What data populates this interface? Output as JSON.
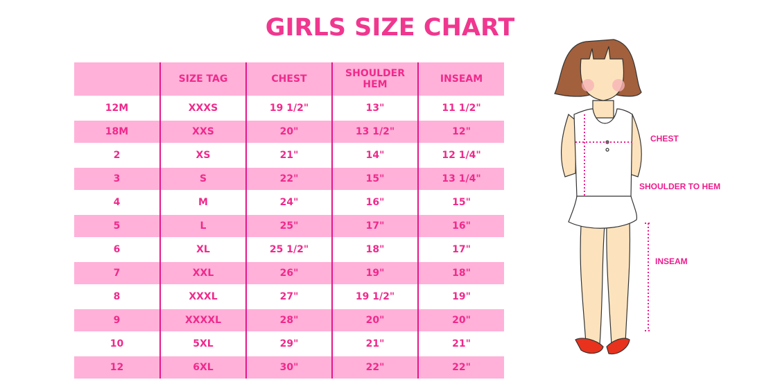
{
  "title": "GIRLS SIZE CHART",
  "table": {
    "headers": [
      "",
      "SIZE TAG",
      "CHEST",
      "SHOULDER HEM",
      "INSEAM"
    ],
    "rows": [
      [
        "12M",
        "XXXS",
        "19 1/2\"",
        "13\"",
        "11 1/2\""
      ],
      [
        "18M",
        "XXS",
        "20\"",
        "13 1/2\"",
        "12\""
      ],
      [
        "2",
        "XS",
        "21\"",
        "14\"",
        "12 1/4\""
      ],
      [
        "3",
        "S",
        "22\"",
        "15\"",
        "13 1/4\""
      ],
      [
        "4",
        "M",
        "24\"",
        "16\"",
        "15\""
      ],
      [
        "5",
        "L",
        "25\"",
        "17\"",
        "16\""
      ],
      [
        "6",
        "XL",
        "25 1/2\"",
        "18\"",
        "17\""
      ],
      [
        "7",
        "XXL",
        "26\"",
        "19\"",
        "18\""
      ],
      [
        "8",
        "XXXL",
        "27\"",
        "19 1/2\"",
        "19\""
      ],
      [
        "9",
        "XXXXL",
        "28\"",
        "20\"",
        "20\""
      ],
      [
        "10",
        "5XL",
        "29\"",
        "21\"",
        "21\""
      ],
      [
        "12",
        "6XL",
        "30\"",
        "22\"",
        "22\""
      ]
    ]
  },
  "diagram": {
    "labels": {
      "chest": "CHEST",
      "shoulder": "SHOULDER TO HEM",
      "inseam": "INSEAM"
    }
  },
  "colors": {
    "accent": "#ef2a8c",
    "stripe": "#ffb1d9",
    "divider": "#e5168a"
  }
}
